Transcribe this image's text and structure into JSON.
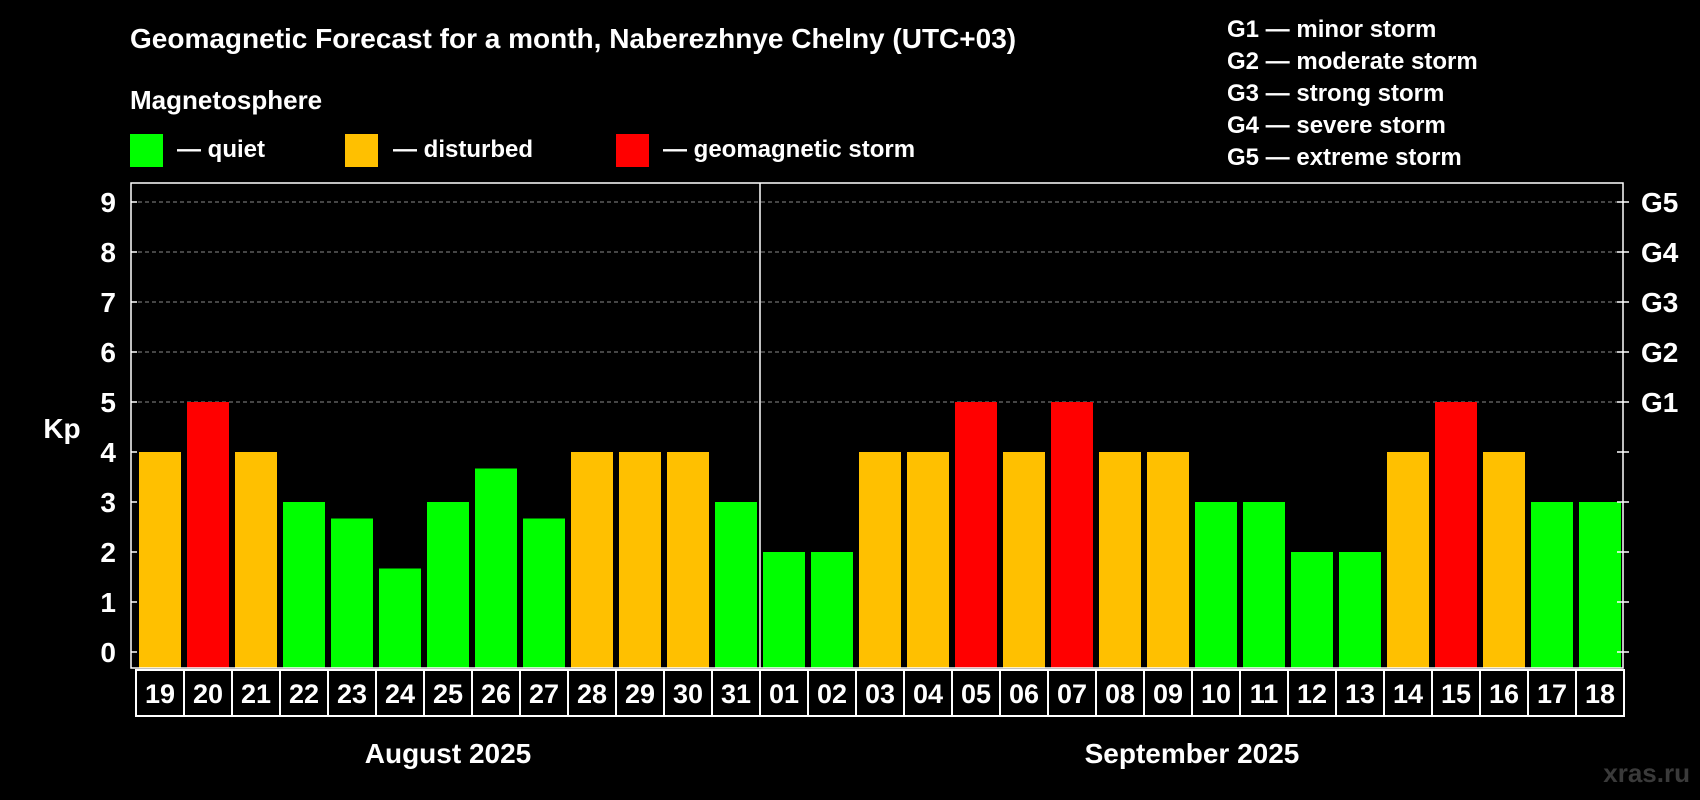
{
  "chart_data": {
    "type": "bar",
    "title": "Geomagnetic Forecast for a month, Naberezhnye Chelny (UTC+03)",
    "legend_title": "Magnetosphere",
    "legend": [
      {
        "key": "quiet",
        "label": "— quiet",
        "color": "#00ff00"
      },
      {
        "key": "disturbed",
        "label": "— disturbed",
        "color": "#ffc000"
      },
      {
        "key": "storm",
        "label": "— geomagnetic storm",
        "color": "#ff0000"
      }
    ],
    "storm_scale": [
      "G1 — minor storm",
      "G2 — moderate storm",
      "G3 — strong storm",
      "G4 — severe storm",
      "G5 — extreme storm"
    ],
    "ylabel": "Kp",
    "ylim": [
      0,
      9
    ],
    "yticks": [
      "0",
      "1",
      "2",
      "3",
      "4",
      "5",
      "6",
      "7",
      "8",
      "9"
    ],
    "right_labels": [
      {
        "value": 5,
        "label": "G1"
      },
      {
        "value": 6,
        "label": "G2"
      },
      {
        "value": 7,
        "label": "G3"
      },
      {
        "value": 8,
        "label": "G4"
      },
      {
        "value": 9,
        "label": "G5"
      }
    ],
    "grid_lines": [
      5,
      6,
      7,
      8,
      9
    ],
    "categories": [
      "19",
      "20",
      "21",
      "22",
      "23",
      "24",
      "25",
      "26",
      "27",
      "28",
      "29",
      "30",
      "31",
      "01",
      "02",
      "03",
      "04",
      "05",
      "06",
      "07",
      "08",
      "09",
      "10",
      "11",
      "12",
      "13",
      "14",
      "15",
      "16",
      "17",
      "18"
    ],
    "values": [
      4,
      5,
      4,
      3,
      2.67,
      1.67,
      3,
      3.67,
      2.67,
      4,
      4,
      4,
      3,
      2,
      2,
      4,
      4,
      5,
      4,
      5,
      4,
      4,
      3,
      3,
      2,
      2,
      4,
      5,
      4,
      3,
      3
    ],
    "months": [
      {
        "label": "August 2025",
        "start": 0,
        "count": 13
      },
      {
        "label": "September 2025",
        "start": 13,
        "count": 18
      }
    ],
    "watermark": "xras.ru"
  }
}
